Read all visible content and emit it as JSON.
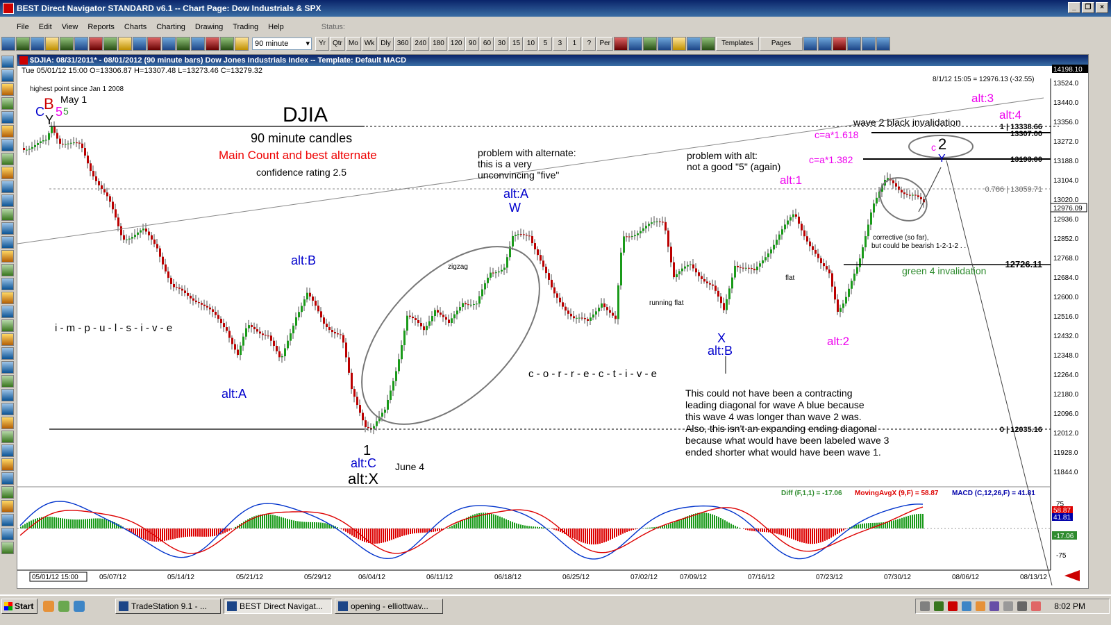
{
  "window": {
    "title": "BEST Direct Navigator STANDARD v6.1  --  Chart Page: Dow Industrials & SPX",
    "buttons": [
      "_",
      "❐",
      "×"
    ]
  },
  "menu": {
    "items": [
      "File",
      "Edit",
      "View",
      "Reports",
      "Charts",
      "Charting",
      "Drawing",
      "Trading",
      "Help"
    ],
    "status_label": "Status:"
  },
  "toolbar": {
    "interval_value": "90 minute",
    "periods": [
      "Yr",
      "Qtr",
      "Mo",
      "Wk",
      "Dly",
      "360",
      "240",
      "180",
      "120",
      "90",
      "60",
      "30",
      "15",
      "10",
      "5",
      "3",
      "1",
      "?",
      "Per"
    ],
    "templates_label": "Templates",
    "pages_label": "Pages"
  },
  "chart": {
    "header": "$DJIA:  08/31/2011* - 08/01/2012  (90 minute bars)   Dow Jones Industrials Index  --  Template: Default MACD",
    "ohlc": "Tue   05/01/12 15:00   O=13306.87   H=13307.48   L=13273.46   C=13279.32",
    "readout": "8/1/12 15:05 = 12976.13  (-32.55)",
    "last_price": "14198.10",
    "current_price": "12976.09",
    "price_axis": [
      "13524.0",
      "13440.0",
      "13356.0",
      "13272.0",
      "13188.0",
      "13104.0",
      "13020.0",
      "12936.0",
      "12852.0",
      "12768.0",
      "12684.0",
      "12600.0",
      "12516.0",
      "12432.0",
      "12348.0",
      "12264.0",
      "12180.0",
      "12096.0",
      "12012.0",
      "11928.0",
      "11844.0"
    ],
    "date_axis": [
      "05/01/12 15:00",
      "05/07/12",
      "05/14/12",
      "05/21/12",
      "05/29/12",
      "06/04/12",
      "06/11/12",
      "06/18/12",
      "06/25/12",
      "07/02/12",
      "07/09/12",
      "07/16/12",
      "07/23/12",
      "07/30/12",
      "08/06/12",
      "08/13/12"
    ],
    "level_labels": {
      "fib_1": "1 | 13338.66",
      "level_13307": "13307.00",
      "level_13193": "13193.00",
      "fib_786": "0.786 | 13059.71",
      "level_12726": "12726.11",
      "fib_0": "0 | 12035.16"
    },
    "macd_legend": {
      "diff": "Diff (F,1,1) = -17.06",
      "mavg": "MovingAvgX (9,F) = 58.87",
      "macd": "MACD (C,12,26,F) = 41.81"
    },
    "macd_axis": {
      "top": "75",
      "bottom": "-75",
      "red_val": "58.87",
      "blue_val": "41.81",
      "green_val": "-17.06"
    }
  },
  "annotations": {
    "title": "DJIA",
    "subtitle": "90 minute candles",
    "main_count": "Main Count and best alternate",
    "confidence": "confidence rating 2.5",
    "highest_point": "highest point since Jan 1 2008",
    "may1": "May 1",
    "june4": "June 4",
    "impulsive": "i - m - p - u - l - s - i - v - e",
    "corrective": "c - o - r - r - e - c - t - i - v - e",
    "zigzag": "zigzag",
    "running_flat": "running flat",
    "flat": "flat",
    "problem_alt1": "problem with alternate:",
    "problem_alt2": "this is a very",
    "problem_alt3": "unconvincing \"five\"",
    "problem_b1": "problem with alt:",
    "problem_b2": "not a good \"5\" (again)",
    "wave2_inval": "wave 2 black invalidation",
    "green4_inval": "green 4 invalidation",
    "corrective_so_far": "corrective (so far),",
    "bearish": "but could be bearish 1-2-1-2 . .",
    "c1618": "c=a*1.618",
    "c1382": "c=a*1.382",
    "note_lines": [
      "This could not have been a contracting",
      "leading diagonal for wave A blue because",
      "this wave 4 was longer than wave 2 was.",
      "Also, this isn't an expanding ending diagonal",
      "because what would have been labeled wave 3",
      "ended shorter what would have been wave 1."
    ],
    "labels": {
      "C": "C",
      "B": "B",
      "Y": "Y",
      "five_b": "5",
      "five_g": "5",
      "altA_blue": "alt:A",
      "altB_blue": "alt:B",
      "altC_blue": "alt:C",
      "altX": "alt:X",
      "altB2": "alt:B",
      "altA_W": "alt:A",
      "W": "W",
      "X": "X",
      "alt1": "alt:1",
      "alt2": "alt:2",
      "alt3": "alt:3",
      "alt4": "alt:4",
      "two_black": "2",
      "one_black": "1",
      "Y_blue": "Y",
      "c_small": "c"
    }
  },
  "taskbar": {
    "start": "Start",
    "tasks": [
      "TradeStation 9.1 - ...",
      "BEST Direct Navigat...",
      "opening - elliottwav..."
    ],
    "clock": "8:02 PM"
  }
}
